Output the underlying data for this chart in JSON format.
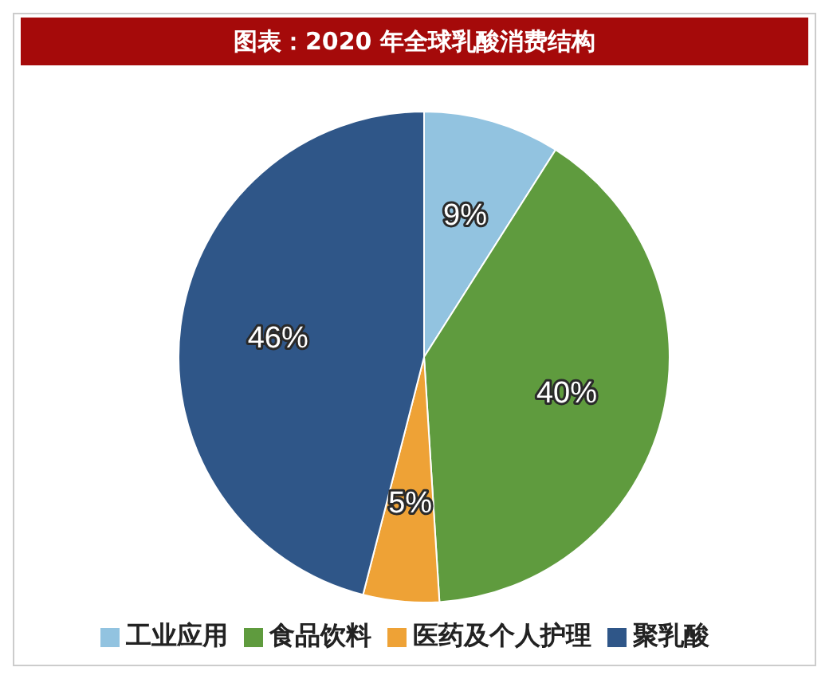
{
  "chart_data": {
    "type": "pie",
    "title": "图表：2020 年全球乳酸消费结构",
    "categories": [
      "工业应用",
      "食品饮料",
      "医药及个人护理",
      "聚乳酸"
    ],
    "values": [
      9,
      40,
      5,
      46
    ],
    "colors": [
      "#92c3e0",
      "#5f9b3e",
      "#eea236",
      "#2f5688"
    ],
    "value_labels": [
      "9%",
      "40%",
      "5%",
      "46%"
    ],
    "legend": "bottom"
  }
}
